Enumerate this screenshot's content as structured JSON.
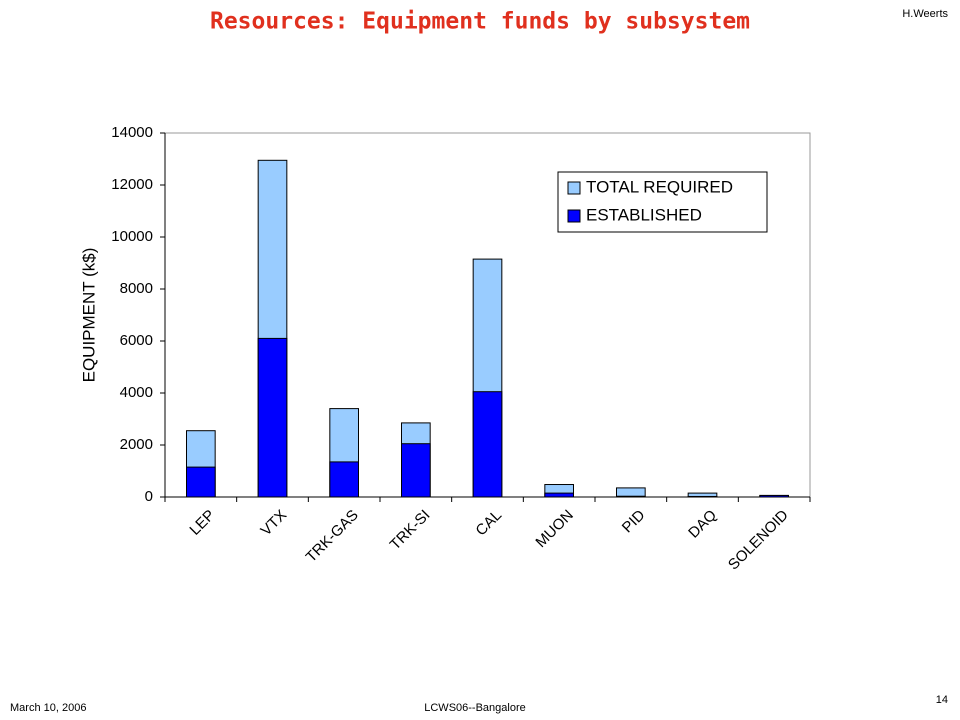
{
  "slide": {
    "author": "H.Weerts",
    "date": "March 10, 2006",
    "event": "LCWS06--Bangalore",
    "page": "14"
  },
  "chart_data": {
    "type": "bar",
    "title": "Resources:  Equipment funds by subsystem",
    "ylabel": "EQUIPMENT (k$)",
    "categories": [
      "LEP",
      "VTX",
      "TRK-GAS",
      "TRK-SI",
      "CAL",
      "MUON",
      "PID",
      "DAQ",
      "SOLENOID"
    ],
    "series": [
      {
        "name": "TOTAL REQUIRED",
        "color": "#99ccff",
        "values": [
          2550,
          12950,
          3400,
          2850,
          9150,
          480,
          350,
          150,
          60
        ]
      },
      {
        "name": "ESTABLISHED",
        "color": "#0000ff",
        "values": [
          1150,
          6100,
          1350,
          2050,
          4050,
          150,
          30,
          20,
          60
        ]
      }
    ],
    "ylim": [
      0,
      14000
    ],
    "yticks": [
      0,
      2000,
      4000,
      6000,
      8000,
      10000,
      12000,
      14000
    ],
    "legend": "upper right"
  }
}
